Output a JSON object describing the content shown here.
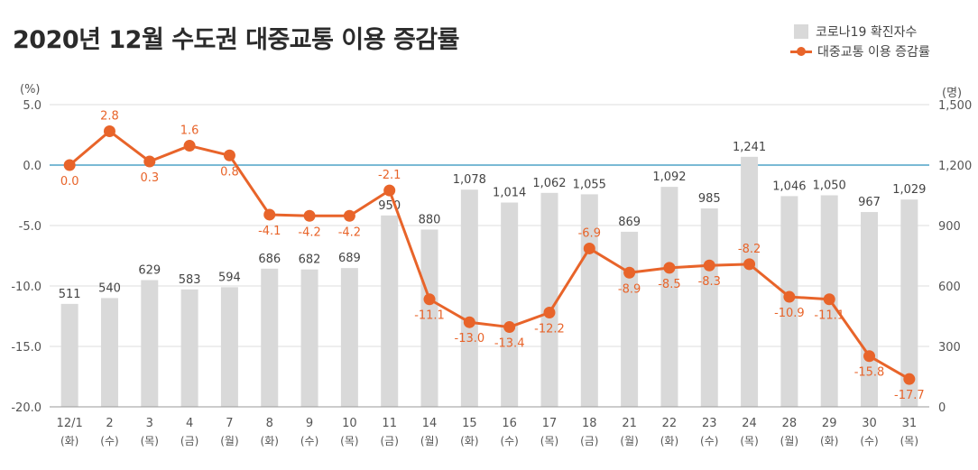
{
  "chart_data": {
    "type": "bar+line",
    "title": "2020년 12월 수도권 대중교통 이용 증감률",
    "categories": [
      "12/1",
      "2",
      "3",
      "4",
      "7",
      "8",
      "9",
      "10",
      "11",
      "14",
      "15",
      "16",
      "17",
      "18",
      "21",
      "22",
      "23",
      "24",
      "28",
      "29",
      "30",
      "31"
    ],
    "weekdays": [
      "(화)",
      "(수)",
      "(목)",
      "(금)",
      "(월)",
      "(화)",
      "(수)",
      "(목)",
      "(금)",
      "(월)",
      "(화)",
      "(수)",
      "(목)",
      "(금)",
      "(월)",
      "(화)",
      "(수)",
      "(목)",
      "(월)",
      "(화)",
      "(수)",
      "(목)"
    ],
    "series": [
      {
        "name": "코로나19 확진자수",
        "type": "bar",
        "axis": "right",
        "values": [
          511,
          540,
          629,
          583,
          594,
          686,
          682,
          689,
          950,
          880,
          1078,
          1014,
          1062,
          1055,
          869,
          1092,
          985,
          1241,
          1046,
          1050,
          967,
          1029
        ],
        "labels": [
          "511",
          "540",
          "629",
          "583",
          "594",
          "686",
          "682",
          "689",
          "950",
          "880",
          "1,078",
          "1,014",
          "1,062",
          "1,055",
          "869",
          "1,092",
          "985",
          "1,241",
          "1,046",
          "1,050",
          "967",
          "1,029"
        ]
      },
      {
        "name": "대중교통 이용 증감률",
        "type": "line",
        "axis": "left",
        "values": [
          0.0,
          2.8,
          0.3,
          1.6,
          0.8,
          -4.1,
          -4.2,
          -4.2,
          -2.1,
          -11.1,
          -13.0,
          -13.4,
          -12.2,
          -6.9,
          -8.9,
          -8.5,
          -8.3,
          -8.2,
          -10.9,
          -11.1,
          -15.8,
          -17.7
        ],
        "labels": [
          "0.0",
          "2.8",
          "0.3",
          "1.6",
          "0.8",
          "-4.1",
          "-4.2",
          "-4.2",
          "-2.1",
          "-11.1",
          "-13.0",
          "-13.4",
          "-12.2",
          "-6.9",
          "-8.9",
          "-8.5",
          "-8.3",
          "-8.2",
          "-10.9",
          "-11.1",
          "-15.8",
          "-17.7"
        ]
      }
    ],
    "left_axis": {
      "unit": "(%)",
      "ylim": [
        -20,
        5
      ],
      "ticks": [
        5,
        0,
        -5,
        -10,
        -15,
        -20
      ],
      "tick_labels": [
        "5.0",
        "0.0",
        "-5.0",
        "-10.0",
        "-15.0",
        "-20.0"
      ]
    },
    "right_axis": {
      "unit": "(명)",
      "ylim": [
        0,
        1500
      ],
      "ticks": [
        1500,
        1200,
        900,
        600,
        300,
        0
      ],
      "tick_labels": [
        "1,500",
        "1,200",
        "900",
        "600",
        "300",
        "0"
      ]
    },
    "legend": {
      "position": "top-right"
    },
    "grid": true
  },
  "colors": {
    "bar": "#d9d9d9",
    "line": "#e8642a",
    "zero_line": "#4fa3c7",
    "grid": "#dddddd",
    "axis": "#999999",
    "text": "#555555"
  }
}
